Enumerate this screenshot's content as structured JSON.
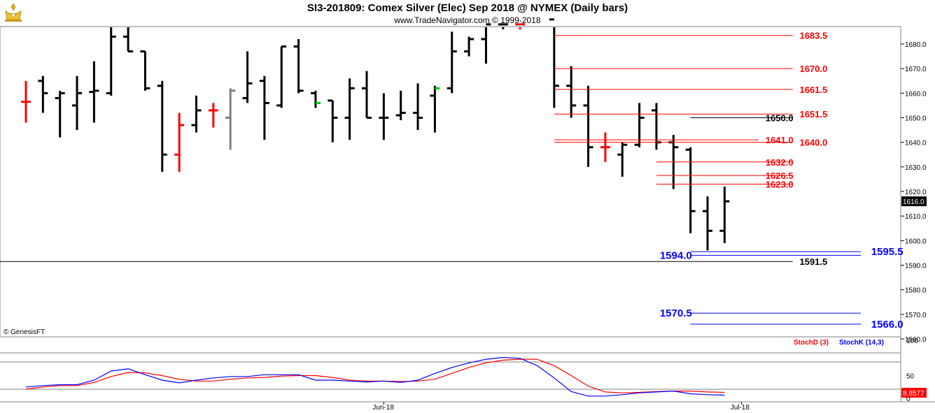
{
  "header": {
    "title": "SI3-201809:  Comex Silver (Elec) Sep 2018 @ NYMEX  (Daily bars)",
    "copyright": "www.TradeNavigator.com © 1999-2018"
  },
  "watermark": "© GenesisFT",
  "colors": {
    "up_bar": "#000000",
    "down_bar": "#ff0000",
    "neutral_bar": "#808080",
    "green_tick": "#00cc00",
    "red_level": "#ff0000",
    "blue_level": "#0000ff",
    "black_level": "#000000",
    "stochD": "#ff0000",
    "stochK": "#0000ff",
    "grid": "#c0c0c0"
  },
  "chart_data": [
    {
      "type": "ohlc",
      "yaxis": {
        "min": 1560,
        "max": 1690,
        "ticks": [
          "1680.0",
          "1670.0",
          "1660.0",
          "1650.0",
          "1640.0",
          "1630.0",
          "1620.0",
          "1610.0",
          "1600.0",
          "1590.0",
          "1580.0",
          "1570.0",
          "1560.0"
        ],
        "current_value": "1616.0"
      },
      "xaxis": {
        "ticks": [
          {
            "label": "Jun-18",
            "bar": 21
          },
          {
            "label": "Jul-18",
            "bar": 42
          }
        ]
      },
      "bars": [
        {
          "o": 1656.5,
          "h": 1665,
          "l": 1648,
          "c": 1656.5,
          "color": "red"
        },
        {
          "o": 1665,
          "h": 1667,
          "l": 1652,
          "c": 1660,
          "color": "black"
        },
        {
          "o": 1658,
          "h": 1661,
          "l": 1642,
          "c": 1660,
          "color": "black"
        },
        {
          "o": 1655,
          "h": 1667,
          "l": 1645,
          "c": 1660,
          "color": "black"
        },
        {
          "o": 1660.5,
          "h": 1673,
          "l": 1648,
          "c": 1661,
          "color": "black"
        },
        {
          "o": 1660,
          "h": 1690,
          "l": 1659,
          "c": 1683,
          "color": "black"
        },
        {
          "o": 1683,
          "h": 1688,
          "l": 1677,
          "c": 1677,
          "color": "black"
        },
        {
          "o": 1677,
          "h": 1677,
          "l": 1661,
          "c": 1662,
          "color": "black"
        },
        {
          "o": 1663,
          "h": 1665,
          "l": 1628,
          "c": 1635,
          "color": "black"
        },
        {
          "o": 1635,
          "h": 1652,
          "l": 1628,
          "c": 1647,
          "color": "red"
        },
        {
          "o": 1647,
          "h": 1659,
          "l": 1644,
          "c": 1653,
          "color": "black"
        },
        {
          "o": 1653,
          "h": 1656,
          "l": 1646,
          "c": 1653,
          "color": "red"
        },
        {
          "o": 1650,
          "h": 1662,
          "l": 1637,
          "c": 1661,
          "color": "gray"
        },
        {
          "o": 1658,
          "h": 1677,
          "l": 1656,
          "c": 1664,
          "color": "black"
        },
        {
          "o": 1665,
          "h": 1667,
          "l": 1641,
          "c": 1656,
          "color": "black"
        },
        {
          "o": 1655,
          "h": 1679,
          "l": 1654,
          "c": 1679,
          "color": "black"
        },
        {
          "o": 1679,
          "h": 1682,
          "l": 1660,
          "c": 1661,
          "color": "black"
        },
        {
          "o": 1660,
          "h": 1661,
          "l": 1654,
          "c": 1656,
          "color": "black",
          "tick": "green"
        },
        {
          "o": 1657,
          "h": 1657,
          "l": 1640,
          "c": 1650,
          "color": "black"
        },
        {
          "o": 1650,
          "h": 1666,
          "l": 1641,
          "c": 1662,
          "color": "black"
        },
        {
          "o": 1662,
          "h": 1669,
          "l": 1650,
          "c": 1650,
          "color": "black"
        },
        {
          "o": 1650,
          "h": 1660,
          "l": 1641,
          "c": 1650,
          "color": "black"
        },
        {
          "o": 1651,
          "h": 1661,
          "l": 1649,
          "c": 1652,
          "color": "black"
        },
        {
          "o": 1652,
          "h": 1664,
          "l": 1645,
          "c": 1650,
          "color": "black"
        },
        {
          "o": 1659,
          "h": 1663,
          "l": 1644,
          "c": 1662,
          "color": "black",
          "tick": "green"
        },
        {
          "o": 1662,
          "h": 1685,
          "l": 1660,
          "c": 1677,
          "color": "black"
        },
        {
          "o": 1677,
          "h": 1683,
          "l": 1675,
          "c": 1682,
          "color": "black"
        },
        {
          "o": 1682,
          "h": 1690,
          "l": 1672,
          "c": 1688,
          "color": "black"
        },
        {
          "o": 1688,
          "h": 1690,
          "l": 1686,
          "c": 1688,
          "color": "black"
        },
        {
          "o": 1688,
          "h": 1690,
          "l": 1686,
          "c": 1688,
          "color": "red"
        },
        null,
        {
          "o": 1690,
          "h": 1690,
          "l": 1654,
          "c": 1663,
          "color": "black"
        },
        {
          "o": 1663,
          "h": 1671,
          "l": 1650,
          "c": 1655,
          "color": "black"
        },
        {
          "o": 1655,
          "h": 1663,
          "l": 1630,
          "c": 1638,
          "color": "black"
        },
        {
          "o": 1638,
          "h": 1644,
          "l": 1632,
          "c": 1638,
          "color": "red"
        },
        {
          "o": 1635,
          "h": 1640,
          "l": 1626,
          "c": 1639,
          "color": "black"
        },
        {
          "o": 1639,
          "h": 1656,
          "l": 1638,
          "c": 1650,
          "color": "black"
        },
        {
          "o": 1653,
          "h": 1656,
          "l": 1637,
          "c": 1640,
          "color": "black"
        },
        {
          "o": 1640,
          "h": 1643,
          "l": 1621,
          "c": 1638,
          "color": "black"
        },
        {
          "o": 1637,
          "h": 1638,
          "l": 1603,
          "c": 1612,
          "color": "black"
        },
        {
          "o": 1612,
          "h": 1618,
          "l": 1596,
          "c": 1604,
          "color": "black"
        },
        {
          "o": 1604,
          "h": 1622,
          "l": 1599,
          "c": 1616,
          "color": "black"
        }
      ],
      "levels": [
        {
          "value": 1683.5,
          "label": "1683.5",
          "color": "red",
          "from_bar": 31,
          "to_bar": 45,
          "label_bar": 45.4
        },
        {
          "value": 1670.0,
          "label": "1670.0",
          "color": "red",
          "from_bar": 31,
          "to_bar": 45,
          "label_bar": 45.4
        },
        {
          "value": 1661.5,
          "label": "1661.5",
          "color": "red",
          "from_bar": 31,
          "to_bar": 45,
          "label_bar": 45.4
        },
        {
          "value": 1651.5,
          "label": "1651.5",
          "color": "red",
          "from_bar": 31,
          "to_bar": 45,
          "label_bar": 45.4
        },
        {
          "value": 1650.0,
          "label": "1650.0",
          "color": "black",
          "from_bar": 39,
          "to_bar": 45,
          "label_bar": 43.4
        },
        {
          "value": 1641.0,
          "label": "1641.0",
          "color": "red",
          "from_bar": 31,
          "to_bar": 43,
          "label_bar": 43.4
        },
        {
          "value": 1640.0,
          "label": "1640.0",
          "color": "red",
          "from_bar": 31,
          "to_bar": 45,
          "label_bar": 45.4
        },
        {
          "value": 1632.0,
          "label": "1632.0",
          "color": "red",
          "from_bar": 37,
          "to_bar": 45,
          "label_bar": 43.4
        },
        {
          "value": 1626.5,
          "label": "1626.5",
          "color": "red",
          "from_bar": 37,
          "to_bar": 45,
          "label_bar": 43.4
        },
        {
          "value": 1623.0,
          "label": "1623.0",
          "color": "red",
          "from_bar": 37,
          "to_bar": 45,
          "label_bar": 43.4
        },
        {
          "value": 1595.5,
          "label": "1595.5",
          "color": "blue",
          "from_bar": 39,
          "to_bar": 49,
          "label_bar": 49.6
        },
        {
          "value": 1594.0,
          "label": "1594.0",
          "color": "blue",
          "from_bar": 39,
          "to_bar": 49,
          "label_bar": 37.2
        },
        {
          "value": 1591.5,
          "label": "1591.5",
          "color": "black",
          "from_bar": -2,
          "to_bar": 45,
          "label_bar": 45.4
        },
        {
          "value": 1570.5,
          "label": "1570.5",
          "color": "blue",
          "from_bar": 39,
          "to_bar": 49,
          "label_bar": 37.2
        },
        {
          "value": 1566.0,
          "label": "1566.0",
          "color": "blue",
          "from_bar": 39,
          "to_bar": 49,
          "label_bar": 49.6
        }
      ]
    },
    {
      "type": "line",
      "yaxis": {
        "min": 0,
        "max": 100,
        "ticks": [
          "100",
          "50",
          "0"
        ],
        "current_value": "8.8577"
      },
      "legend": [
        "StochD (3)",
        "StochK (14,3)"
      ],
      "series": [
        {
          "name": "StochD (3)",
          "values": [
            20,
            25,
            28,
            28,
            35,
            48,
            57,
            56,
            50,
            42,
            38,
            38,
            42,
            45,
            46,
            49,
            50,
            50,
            46,
            40,
            38,
            38,
            37,
            38,
            42,
            55,
            68,
            78,
            84,
            86,
            86,
            72,
            50,
            27,
            14,
            12,
            13,
            15,
            16,
            16,
            14,
            13
          ]
        },
        {
          "name": "StochK (14,3)",
          "values": [
            25,
            28,
            30,
            30,
            40,
            60,
            65,
            52,
            40,
            34,
            40,
            45,
            48,
            48,
            52,
            52,
            52,
            40,
            40,
            38,
            36,
            38,
            35,
            40,
            55,
            68,
            78,
            86,
            90,
            88,
            72,
            45,
            15,
            5,
            5,
            8,
            12,
            14,
            16,
            10,
            8,
            7
          ]
        }
      ]
    }
  ]
}
